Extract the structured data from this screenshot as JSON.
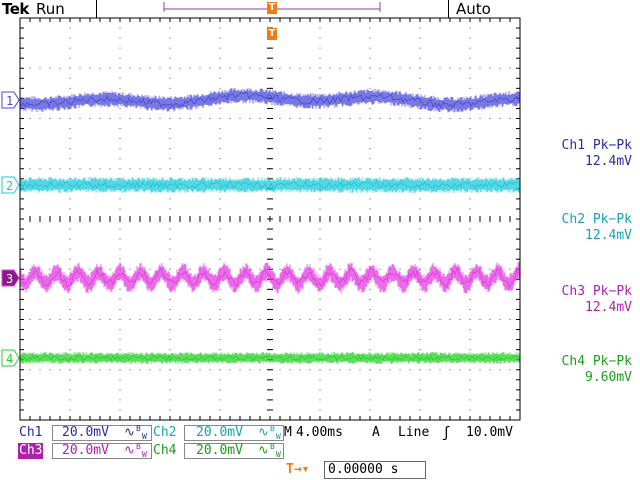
{
  "header": {
    "brand": "Tek",
    "status": "Run",
    "trigger_mode": "Auto"
  },
  "channels": [
    {
      "id": "1",
      "color": "#4b4bd8",
      "meas_label": "Ch1 Pk−Pk",
      "meas_value": "12.4mV",
      "scale_label": "Ch1",
      "scale_value": "20.0mV"
    },
    {
      "id": "2",
      "color": "#1ec8d8",
      "meas_label": "Ch2 Pk−Pk",
      "meas_value": "12.4mV",
      "scale_label": "Ch2",
      "scale_value": "20.0mV"
    },
    {
      "id": "3",
      "color": "#e23ce0",
      "meas_label": "Ch3 Pk−Pk",
      "meas_value": "12.4mV",
      "scale_label": "Ch3",
      "scale_value": "20.0mV"
    },
    {
      "id": "4",
      "color": "#2ad02a",
      "meas_label": "Ch4 Pk−Pk",
      "meas_value": "9.60mV",
      "scale_label": "Ch4",
      "scale_value": "20.0mV"
    }
  ],
  "bw_limit_symbol": "B",
  "bw_limit_sub": "W",
  "coupling_symbol": "∿",
  "timebase": {
    "label": "M",
    "value": "4.00ms"
  },
  "trigger": {
    "source_label": "A",
    "source": "Line",
    "slope_symbol": "ʃ",
    "level": "10.0mV"
  },
  "trigger_marker": "T",
  "horizontal_offset": {
    "icon": "T→▾",
    "value": "0.00000 s"
  },
  "accent_color": "#f07a14"
}
